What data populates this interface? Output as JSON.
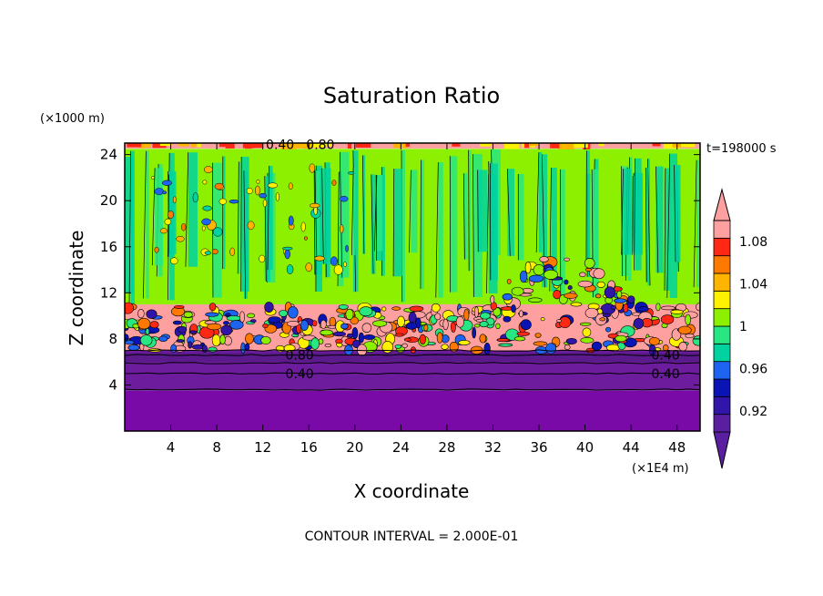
{
  "chart_data": {
    "type": "heatmap",
    "title": "Saturation Ratio",
    "xlabel": "X coordinate",
    "ylabel": "Z coordinate",
    "x_unit": "(×1E4 m)",
    "y_unit": "(×1000 m)",
    "time_label": "t=198000 s",
    "footer": "CONTOUR INTERVAL = 2.000E-01",
    "xlim": [
      0,
      50
    ],
    "ylim": [
      0,
      25
    ],
    "x_ticks": [
      "4",
      "8",
      "12",
      "16",
      "20",
      "24",
      "28",
      "32",
      "36",
      "40",
      "44",
      "48"
    ],
    "x_tick_values": [
      4,
      8,
      12,
      16,
      20,
      24,
      28,
      32,
      36,
      40,
      44,
      48
    ],
    "y_ticks": [
      "4",
      "8",
      "12",
      "16",
      "20",
      "24"
    ],
    "y_tick_values": [
      4,
      8,
      12,
      16,
      20,
      24
    ],
    "contour_labels": [
      {
        "text": "0.40",
        "x": 15.2,
        "y": 5.0
      },
      {
        "text": "0.40",
        "x": 47.0,
        "y": 5.0
      },
      {
        "text": "0.80",
        "x": 15.2,
        "y": 6.6
      },
      {
        "text": "0.40",
        "x": 47.0,
        "y": 6.6
      },
      {
        "text": "0.40",
        "x": 13.5,
        "y": 24.9
      },
      {
        "text": "0.80",
        "x": 17.0,
        "y": 24.9
      }
    ],
    "colorbar": {
      "colors": [
        "#5a1fa0",
        "#3015a8",
        "#0a14b4",
        "#1e64f0",
        "#00d2a0",
        "#28e682",
        "#8cf000",
        "#fff200",
        "#ffb400",
        "#ff7800",
        "#ff2814",
        "#ffa0a0"
      ],
      "levels": [
        0.9,
        0.91,
        0.92,
        0.94,
        0.96,
        0.98,
        1.0,
        1.02,
        1.04,
        1.06,
        1.08,
        1.1
      ],
      "tick_labels": [
        "0.92",
        "0.96",
        "1",
        "1.04",
        "1.08"
      ],
      "tick_values": [
        0.92,
        0.96,
        1.0,
        1.04,
        1.08
      ],
      "extend": "both"
    },
    "field_regions": [
      {
        "z_range": [
          0,
          3.5
        ],
        "value": "< 0.90",
        "color": "#7a0aa8"
      },
      {
        "z_range": [
          3.5,
          7.0
        ],
        "value": "< 0.90",
        "color": "#6c1c9c"
      },
      {
        "z_range": [
          7.0,
          11.0
        ],
        "value": "mixed 0.92–1.10",
        "color": "#ffa0a0"
      },
      {
        "z_range": [
          11.0,
          24.5
        ],
        "value": "0.98–1.02",
        "color": "#8cf000"
      }
    ]
  }
}
